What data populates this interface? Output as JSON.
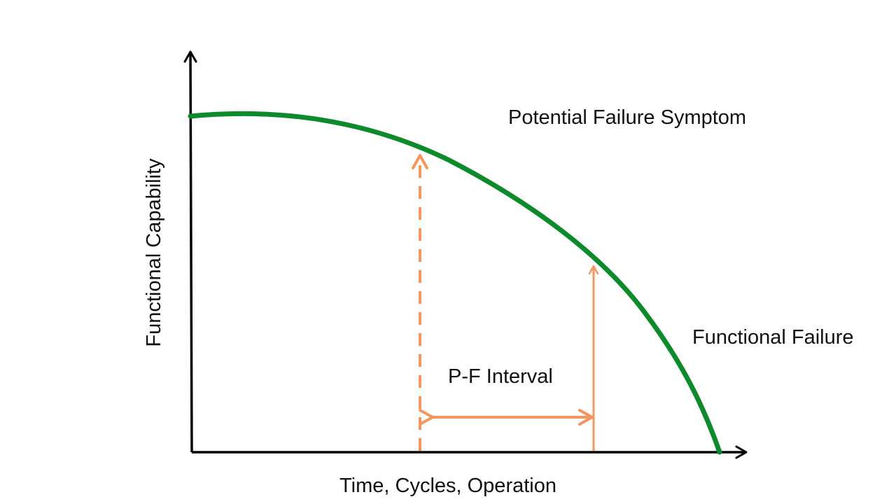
{
  "diagram": {
    "title": "",
    "x_axis_label": "Time, Cycles, Operation",
    "y_axis_label": "Functional Capability",
    "annotations": {
      "potential_failure": "Potential Failure Symptom",
      "functional_failure": "Functional Failure",
      "pf_interval": "P-F Interval"
    },
    "colors": {
      "curve": "#0d8a2a",
      "markers": "#f7955f",
      "axes": "#000000",
      "text": "#111111"
    }
  }
}
